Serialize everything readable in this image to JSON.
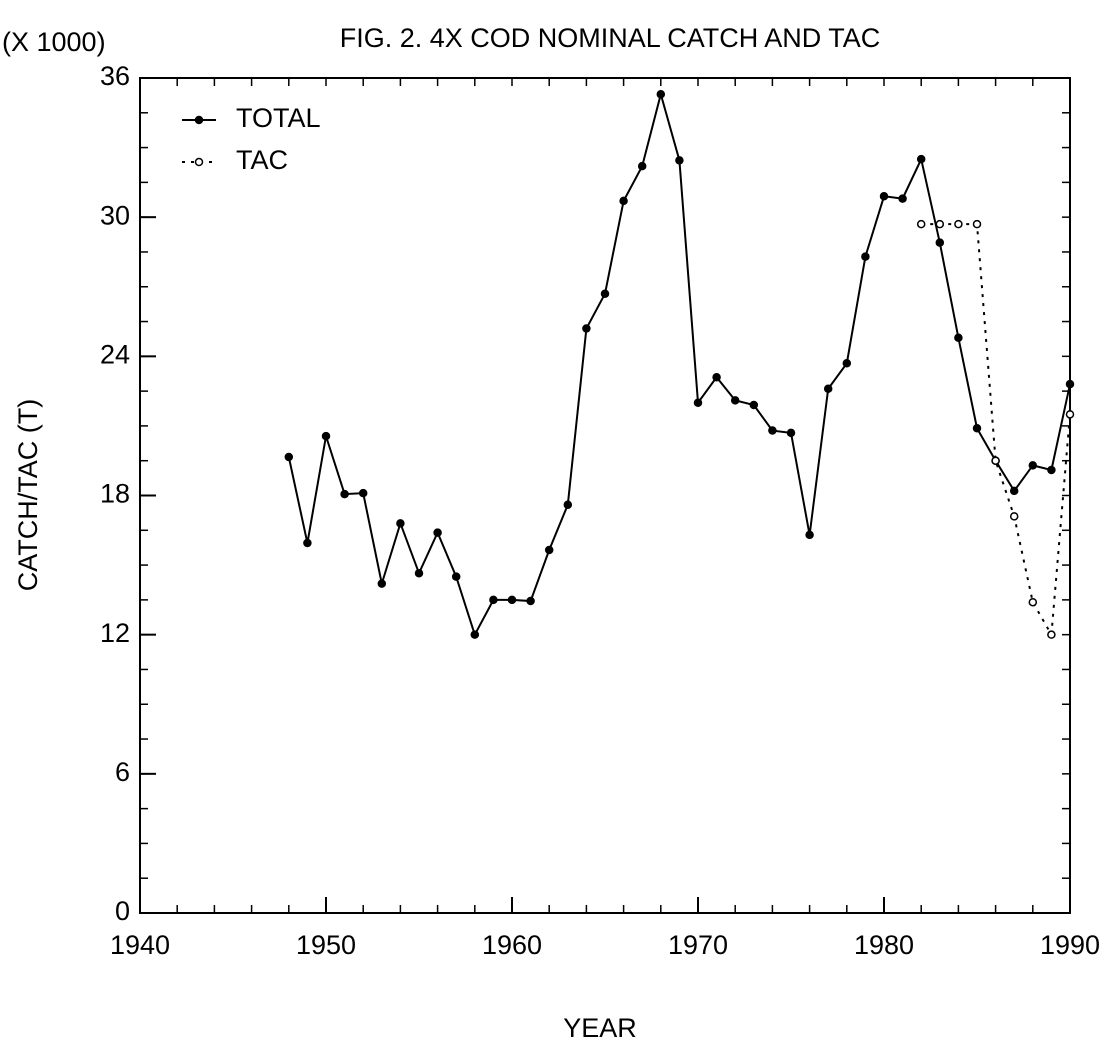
{
  "chart_data": {
    "type": "line",
    "title": "FIG. 2.  4X COD NOMINAL CATCH AND TAC",
    "y_multiplier": "(X 1000)",
    "x_label": "YEAR",
    "y_label": "CATCH/TAC (T)",
    "x": [
      1948,
      1949,
      1950,
      1951,
      1952,
      1953,
      1954,
      1955,
      1956,
      1957,
      1958,
      1959,
      1960,
      1961,
      1962,
      1963,
      1964,
      1965,
      1966,
      1967,
      1968,
      1969,
      1970,
      1971,
      1972,
      1973,
      1974,
      1975,
      1976,
      1977,
      1978,
      1979,
      1980,
      1981,
      1982,
      1983,
      1984,
      1985,
      1986,
      1987,
      1988,
      1989,
      1990
    ],
    "series": [
      {
        "name": "TOTAL",
        "color": "#000000",
        "style": "solid",
        "values": [
          19.66,
          15.95,
          20.56,
          18.06,
          18.1,
          14.2,
          16.8,
          14.65,
          16.4,
          14.5,
          12.0,
          13.5,
          13.5,
          13.45,
          15.65,
          17.6,
          25.2,
          26.7,
          30.7,
          32.2,
          35.3,
          32.45,
          22.0,
          23.1,
          22.1,
          21.9,
          20.8,
          20.7,
          16.3,
          22.6,
          23.7,
          28.3,
          30.9,
          30.8,
          32.5,
          28.9,
          24.8,
          20.9,
          19.5,
          18.2,
          19.3,
          19.1,
          22.8
        ]
      },
      {
        "name": "TAC",
        "color": "#000000",
        "style": "dotted",
        "values": [
          null,
          null,
          null,
          null,
          null,
          null,
          null,
          null,
          null,
          null,
          null,
          null,
          null,
          null,
          null,
          null,
          null,
          null,
          null,
          null,
          null,
          null,
          null,
          null,
          null,
          null,
          null,
          null,
          null,
          null,
          null,
          null,
          null,
          null,
          29.7,
          29.7,
          29.7,
          29.7,
          19.5,
          17.1,
          13.4,
          12.0,
          21.5
        ]
      }
    ],
    "xlim": [
      1940,
      1990
    ],
    "xticks": [
      1940,
      1950,
      1960,
      1970,
      1980,
      1990
    ],
    "ylim": [
      0,
      36
    ],
    "yticks": [
      0,
      6,
      12,
      18,
      24,
      30,
      36
    ],
    "legend": "upper-left"
  }
}
